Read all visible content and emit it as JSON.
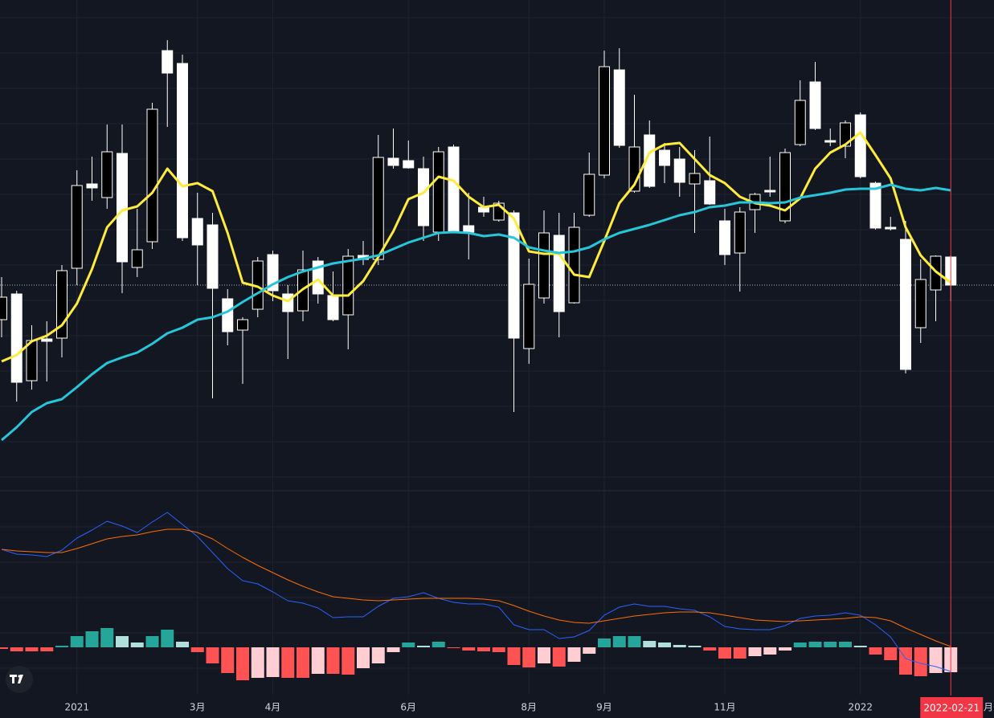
{
  "chart_data": [
    {
      "type": "candlestick",
      "categories": [
        null,
        null,
        null,
        null,
        null,
        "2021",
        null,
        null,
        null,
        null,
        null,
        null,
        null,
        "3月",
        null,
        null,
        null,
        null,
        "4月",
        null,
        null,
        null,
        null,
        null,
        null,
        null,
        null,
        "6月",
        null,
        null,
        null,
        null,
        null,
        null,
        null,
        "8月",
        null,
        null,
        null,
        null,
        "9月",
        null,
        null,
        null,
        null,
        null,
        null,
        null,
        "11月",
        null,
        null,
        null,
        null,
        null,
        null,
        null,
        null,
        "2022",
        null,
        null,
        null,
        null,
        null,
        null
      ],
      "open": [
        202,
        234,
        126,
        178,
        179,
        266,
        371,
        354,
        409,
        267,
        299,
        537,
        521,
        328,
        320,
        228,
        189,
        215,
        283,
        234,
        213,
        275,
        232,
        208,
        282,
        277,
        403,
        400,
        390,
        311,
        417,
        319,
        342,
        326,
        335,
        166,
        229,
        307,
        223,
        332,
        382,
        513,
        362,
        432,
        413,
        402,
        371,
        375,
        325,
        285,
        339,
        363,
        325,
        420,
        498,
        425,
        418,
        457,
        372,
        317,
        302,
        192,
        239,
        280
      ],
      "high": [
        255,
        238,
        195,
        200,
        270,
        388,
        405,
        445,
        445,
        340,
        472,
        550,
        532,
        360,
        335,
        240,
        205,
        280,
        288,
        245,
        288,
        280,
        262,
        290,
        300,
        432,
        440,
        425,
        405,
        417,
        420,
        360,
        355,
        350,
        338,
        278,
        338,
        335,
        335,
        410,
        537,
        540,
        482,
        450,
        422,
        417,
        413,
        430,
        340,
        342,
        360,
        405,
        415,
        500,
        523,
        440,
        450,
        460,
        374,
        330,
        325,
        277,
        282,
        282
      ],
      "low": [
        180,
        100,
        115,
        125,
        155,
        245,
        350,
        340,
        235,
        255,
        290,
        442,
        300,
        245,
        104,
        170,
        122,
        205,
        225,
        153,
        200,
        222,
        200,
        165,
        270,
        270,
        390,
        390,
        300,
        300,
        310,
        277,
        330,
        324,
        87,
        147,
        222,
        180,
        222,
        330,
        378,
        416,
        360,
        366,
        372,
        355,
        310,
        345,
        270,
        237,
        310,
        355,
        322,
        418,
        438,
        418,
        403,
        378,
        314,
        313,
        135,
        173,
        200,
        225
      ],
      "close": [
        230,
        124,
        176,
        175,
        263,
        369,
        366,
        411,
        274,
        289,
        464,
        509,
        304,
        295,
        241,
        187,
        202,
        275,
        238,
        212,
        264,
        234,
        202,
        281,
        277,
        404,
        394,
        391,
        319,
        411,
        312,
        311,
        336,
        347,
        179,
        246,
        310,
        212,
        317,
        383,
        517,
        419,
        417,
        368,
        394,
        373,
        384,
        346,
        283,
        336,
        358,
        361,
        410,
        475,
        440,
        423,
        447,
        380,
        316,
        315,
        140,
        252,
        281,
        245
      ],
      "up_color": "#000000",
      "down_color": "#ffffff",
      "border_color": "#ffffff",
      "series": [
        {
          "color": "#ffeb3b",
          "values": [
            150,
            158,
            175,
            182,
            195,
            222,
            265,
            317,
            338,
            343,
            360,
            390,
            368,
            372,
            362,
            310,
            248,
            243,
            232,
            225,
            240,
            252,
            232,
            232,
            250,
            280,
            312,
            352,
            360,
            380,
            375,
            355,
            342,
            345,
            328,
            287,
            284,
            284,
            258,
            255,
            300,
            347,
            370,
            410,
            420,
            422,
            402,
            382,
            372,
            355,
            347,
            344,
            338,
            353,
            390,
            410,
            420,
            435,
            407,
            378,
            317,
            282,
            262,
            248
          ]
        },
        {
          "color": "#26c6da",
          "values": [
            52,
            68,
            87,
            98,
            103,
            118,
            134,
            148,
            155,
            161,
            172,
            185,
            192,
            202,
            205,
            212,
            224,
            235,
            246,
            255,
            262,
            267,
            272,
            275,
            278,
            282,
            290,
            298,
            304,
            310,
            311,
            310,
            306,
            308,
            304,
            292,
            288,
            285,
            287,
            292,
            302,
            310,
            315,
            320,
            326,
            332,
            336,
            342,
            344,
            348,
            348,
            347,
            348,
            354,
            357,
            360,
            364,
            365,
            365,
            370,
            365,
            363,
            366,
            363
          ]
        }
      ],
      "ylim": [
        -10,
        600
      ],
      "grid": true,
      "cursor_label": "2022-02-21",
      "edge_label": "月"
    },
    {
      "type": "macd",
      "series": [
        {
          "color": "#2962ff",
          "values": [
            122,
            116,
            115,
            113,
            121,
            136,
            146,
            157,
            151,
            143,
            156,
            168,
            153,
            138,
            118,
            98,
            83,
            79,
            69,
            58,
            55,
            49,
            37,
            38,
            38,
            51,
            61,
            63,
            68,
            61,
            56,
            54,
            54,
            50,
            28,
            22,
            22,
            11,
            13,
            21,
            40,
            50,
            54,
            51,
            51,
            48,
            46,
            38,
            26,
            23,
            22,
            22,
            27,
            36,
            39,
            40,
            43,
            40,
            28,
            13,
            -14,
            -20,
            -24,
            -30
          ]
        },
        {
          "color": "#ff6d00",
          "values": [
            122,
            120,
            119,
            118,
            118,
            123,
            129,
            135,
            138,
            140,
            144,
            147,
            147,
            143,
            135,
            123,
            112,
            102,
            93,
            84,
            76,
            69,
            63,
            61,
            59,
            58,
            59,
            60,
            61,
            61,
            61,
            61,
            60,
            58,
            52,
            45,
            39,
            34,
            31,
            30,
            33,
            36,
            39,
            41,
            43,
            44,
            44,
            43,
            40,
            37,
            34,
            33,
            32,
            33,
            34,
            35,
            36,
            38,
            37,
            33,
            24,
            16,
            8,
            1
          ]
        }
      ],
      "histogram": {
        "values": [
          -2,
          -5,
          -5,
          -5,
          2,
          14,
          20,
          24,
          14,
          6,
          14,
          22,
          7,
          -6,
          -20,
          -32,
          -41,
          -38,
          -37,
          -38,
          -38,
          -33,
          -33,
          -34,
          -26,
          -20,
          -6,
          6,
          2,
          7,
          -1,
          -4,
          -5,
          -6,
          -22,
          -25,
          -20,
          -24,
          -18,
          -8,
          11,
          14,
          14,
          8,
          6,
          3,
          2,
          -4,
          -14,
          -14,
          -11,
          -9,
          -4,
          6,
          7,
          7,
          7,
          2,
          -9,
          -16,
          -34,
          -36,
          -32,
          -31
        ],
        "colors": {
          "up_strong": "#26a69a",
          "up_weak": "#b2dfdb",
          "down_strong": "#ff5252",
          "down_weak": "#ffcdd2"
        }
      },
      "ylim": [
        -59,
        194
      ]
    }
  ]
}
